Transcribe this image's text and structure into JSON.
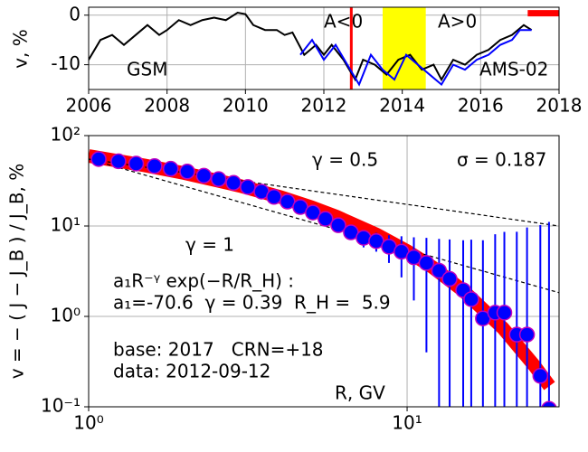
{
  "chart_data": [
    {
      "type": "line",
      "xlim": [
        2006,
        2018
      ],
      "ylim": [
        -15,
        1.6
      ],
      "xticks": [
        2006,
        2008,
        2010,
        2012,
        2014,
        2016,
        2018
      ],
      "yticks": [
        -10,
        0
      ],
      "ylabel": "v, %",
      "grid": true,
      "series": [
        {
          "name": "GSM",
          "color": "#000000",
          "x": [
            2006.0,
            2006.3,
            2006.6,
            2006.9,
            2007.2,
            2007.5,
            2007.8,
            2008.0,
            2008.3,
            2008.6,
            2008.9,
            2009.2,
            2009.5,
            2009.8,
            2010.0,
            2010.2,
            2010.5,
            2010.8,
            2011.0,
            2011.2,
            2011.5,
            2011.8,
            2012.0,
            2012.2,
            2012.5,
            2012.8,
            2013.0,
            2013.3,
            2013.6,
            2013.9,
            2014.2,
            2014.5,
            2014.8,
            2015.0,
            2015.3,
            2015.6,
            2015.9,
            2016.2,
            2016.5,
            2016.8,
            2017.1,
            2017.3
          ],
          "values": [
            -9,
            -5,
            -4,
            -6,
            -4,
            -2,
            -4,
            -3,
            -1,
            -2,
            -1,
            -0.5,
            -1,
            0.5,
            0.2,
            -2,
            -3,
            -3,
            -4,
            -3.5,
            -8,
            -6,
            -8,
            -6,
            -9,
            -13,
            -9,
            -10,
            -12,
            -9,
            -8,
            -11,
            -10,
            -13,
            -9,
            -10,
            -8,
            -7,
            -5,
            -4,
            -2,
            -3
          ]
        },
        {
          "name": "AMS-02",
          "color": "#0000ff",
          "x": [
            2011.4,
            2011.7,
            2012.0,
            2012.3,
            2012.6,
            2012.9,
            2013.2,
            2013.5,
            2013.8,
            2014.1,
            2014.4,
            2014.7,
            2015.0,
            2015.3,
            2015.6,
            2015.9,
            2016.2,
            2016.5,
            2016.8,
            2017.0,
            2017.3
          ],
          "values": [
            -8,
            -5,
            -9,
            -6,
            -10,
            -14,
            -8,
            -11,
            -13,
            -8,
            -10,
            -12,
            -14,
            -10,
            -11,
            -9,
            -8,
            -6,
            -5,
            -3,
            -3
          ]
        }
      ],
      "vline": {
        "x": 2012.7,
        "color": "#ff0000"
      },
      "span": {
        "x": [
          2013.5,
          2014.6
        ],
        "color": "#ffff00"
      },
      "bar": {
        "x": [
          2017.2,
          2018
        ],
        "y": 0.4,
        "color": "#ff0000"
      },
      "annotations": [
        "A<0",
        "A>0"
      ]
    },
    {
      "type": "scatter",
      "xscale": "log",
      "yscale": "log",
      "xlim": [
        1,
        30
      ],
      "ylim": [
        0.1,
        100
      ],
      "xticks": [
        {
          "value": 1,
          "label": "10⁰"
        },
        {
          "value": 10,
          "label": "10¹"
        }
      ],
      "yticks": [
        {
          "value": 0.1,
          "label": "10⁻¹"
        },
        {
          "value": 1,
          "label": "10⁰"
        },
        {
          "value": 10,
          "label": "10¹"
        },
        {
          "value": 100,
          "label": "10²"
        }
      ],
      "xlabel": "R, GV",
      "ylabel": "v = − ( J − J_B ) / J_B, %",
      "grid": true,
      "x": [
        1.075,
        1.24,
        1.41,
        1.61,
        1.81,
        2.04,
        2.3,
        2.56,
        2.85,
        3.16,
        3.49,
        3.82,
        4.21,
        4.62,
        5.06,
        5.54,
        6.08,
        6.66,
        7.3,
        8.0,
        8.77,
        9.6,
        10.5,
        11.5,
        12.6,
        13.6,
        15.0,
        15.9,
        17.3,
        18.9,
        20.2,
        22.1,
        23.8,
        26.2,
        27.9
      ],
      "series": [
        {
          "color": "#0000ff",
          "edgecolor": "#c000c0",
          "values": [
            55,
            52,
            49,
            46,
            43,
            40,
            36,
            33,
            30,
            27,
            24,
            21,
            18.6,
            16.2,
            14.1,
            12.0,
            10.2,
            8.5,
            7.4,
            6.8,
            5.9,
            5.2,
            4.5,
            3.9,
            3.2,
            2.6,
            1.95,
            1.55,
            0.95,
            1.1,
            1.1,
            0.63,
            0.63,
            0.22,
            0.095
          ],
          "errors": [
            0.5,
            0.5,
            0.5,
            0.5,
            0.5,
            0.5,
            0.5,
            0.5,
            0.5,
            0.5,
            0.5,
            0.5,
            0.6,
            0.7,
            0.8,
            1.0,
            1.2,
            1.4,
            1.6,
            1.6,
            2,
            2.5,
            3,
            3.5,
            4,
            4.5,
            5,
            5.5,
            6,
            7,
            7.5,
            8,
            9,
            10,
            11
          ]
        }
      ],
      "fit": {
        "color": "#ff0000",
        "x": [
          1,
          1.5,
          2,
          3,
          4,
          5,
          6,
          8,
          10,
          12,
          15,
          20,
          25,
          28
        ],
        "values": [
          59.6,
          46.8,
          38.4,
          27.7,
          20.9,
          16.2,
          12.7,
          8.09,
          5.28,
          3.51,
          1.93,
          0.74,
          0.29,
          0.17
        ]
      },
      "ref_lines": [
        {
          "label": "γ = 0.5",
          "x": [
            1,
            30
          ],
          "values": [
            55,
            10
          ]
        },
        {
          "label": "γ = 1",
          "x": [
            1,
            30
          ],
          "values": [
            55,
            1.83
          ]
        }
      ],
      "annotations": [
        "σ = 0.187",
        "a₁R⁻ᵞ exp(−R/R_H) :",
        "a₁=-70.6  γ = 0.39  R_H =  5.9",
        "base: 2017   CRN=+18",
        "data: 2012-09-12"
      ]
    }
  ]
}
